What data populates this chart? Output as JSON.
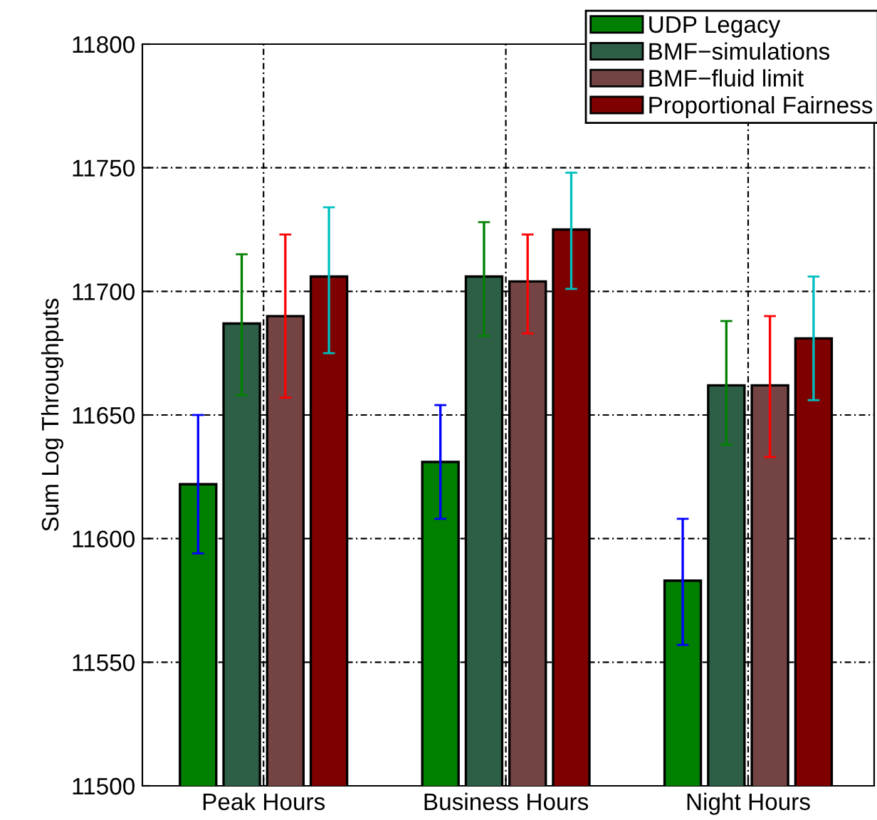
{
  "chart_data": {
    "type": "bar",
    "ylabel": "Sum Log Throughputs",
    "categories": [
      "Peak Hours",
      "Business Hours",
      "Night Hours"
    ],
    "series": [
      {
        "name": "UDP Legacy",
        "color": "#007f00",
        "values": [
          11622,
          11631,
          11583
        ],
        "errors": [
          [
            11594,
            11650
          ],
          [
            11608,
            11654
          ],
          [
            11557,
            11608
          ]
        ]
      },
      {
        "name": "BMF−simulations",
        "color": "#2d5f46",
        "values": [
          11687,
          11706,
          11662
        ],
        "errors": [
          [
            11658,
            11715
          ],
          [
            11682,
            11728
          ],
          [
            11638,
            11688
          ]
        ]
      },
      {
        "name": "BMF−fluid limit",
        "color": "#744444",
        "values": [
          11690,
          11704,
          11662
        ],
        "errors": [
          [
            11657,
            11723
          ],
          [
            11683,
            11723
          ],
          [
            11633,
            11690
          ]
        ]
      },
      {
        "name": "Proportional Fairness",
        "color": "#7f0000",
        "values": [
          11706,
          11725,
          11681
        ],
        "errors": [
          [
            11675,
            11734
          ],
          [
            11701,
            11748
          ],
          [
            11656,
            11706
          ]
        ]
      }
    ],
    "ylim": [
      11500,
      11800
    ],
    "yticks": [
      11500,
      11550,
      11600,
      11650,
      11700,
      11750,
      11800
    ],
    "grid": true,
    "legend": "top right"
  }
}
